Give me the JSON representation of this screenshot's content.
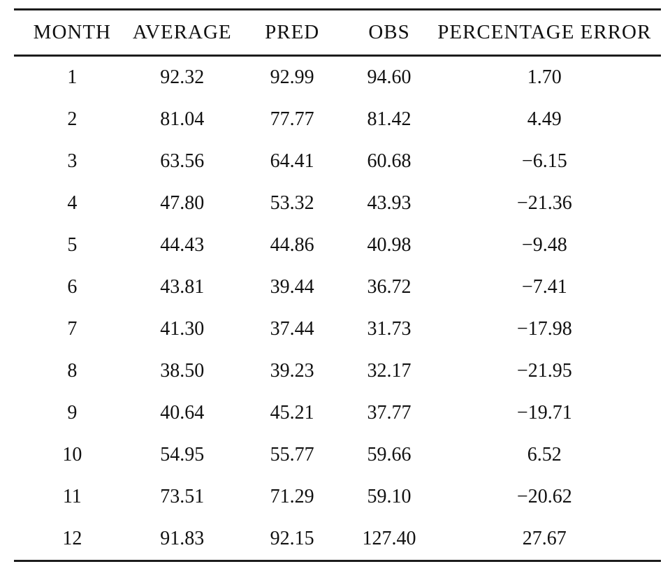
{
  "table": {
    "columns": [
      "MONTH",
      "AVERAGE",
      "PRED",
      "OBS",
      "PERCENTAGE ERROR"
    ],
    "rows": [
      [
        "1",
        "92.32",
        "92.99",
        "94.60",
        "1.70"
      ],
      [
        "2",
        "81.04",
        "77.77",
        "81.42",
        "4.49"
      ],
      [
        "3",
        "63.56",
        "64.41",
        "60.68",
        "−6.15"
      ],
      [
        "4",
        "47.80",
        "53.32",
        "43.93",
        "−21.36"
      ],
      [
        "5",
        "44.43",
        "44.86",
        "40.98",
        "−9.48"
      ],
      [
        "6",
        "43.81",
        "39.44",
        "36.72",
        "−7.41"
      ],
      [
        "7",
        "41.30",
        "37.44",
        "31.73",
        "−17.98"
      ],
      [
        "8",
        "38.50",
        "39.23",
        "32.17",
        "−21.95"
      ],
      [
        "9",
        "40.64",
        "45.21",
        "37.77",
        "−19.71"
      ],
      [
        "10",
        "54.95",
        "55.77",
        "59.66",
        "6.52"
      ],
      [
        "11",
        "73.51",
        "71.29",
        "59.10",
        "−20.62"
      ],
      [
        "12",
        "91.83",
        "92.15",
        "127.40",
        "27.67"
      ]
    ]
  },
  "chart_data": {
    "type": "table",
    "title": "",
    "columns": [
      "MONTH",
      "AVERAGE",
      "PRED",
      "OBS",
      "PERCENTAGE ERROR"
    ],
    "rows": [
      [
        1,
        92.32,
        92.99,
        94.6,
        1.7
      ],
      [
        2,
        81.04,
        77.77,
        81.42,
        4.49
      ],
      [
        3,
        63.56,
        64.41,
        60.68,
        -6.15
      ],
      [
        4,
        47.8,
        53.32,
        43.93,
        -21.36
      ],
      [
        5,
        44.43,
        44.86,
        40.98,
        -9.48
      ],
      [
        6,
        43.81,
        39.44,
        36.72,
        -7.41
      ],
      [
        7,
        41.3,
        37.44,
        31.73,
        -17.98
      ],
      [
        8,
        38.5,
        39.23,
        32.17,
        -21.95
      ],
      [
        9,
        40.64,
        45.21,
        37.77,
        -19.71
      ],
      [
        10,
        54.95,
        55.77,
        59.66,
        6.52
      ],
      [
        11,
        73.51,
        71.29,
        59.1,
        -20.62
      ],
      [
        12,
        91.83,
        92.15,
        127.4,
        27.67
      ]
    ]
  },
  "colors": {
    "text": "#111111",
    "rule": "#1c1c1c",
    "background": "#ffffff"
  }
}
